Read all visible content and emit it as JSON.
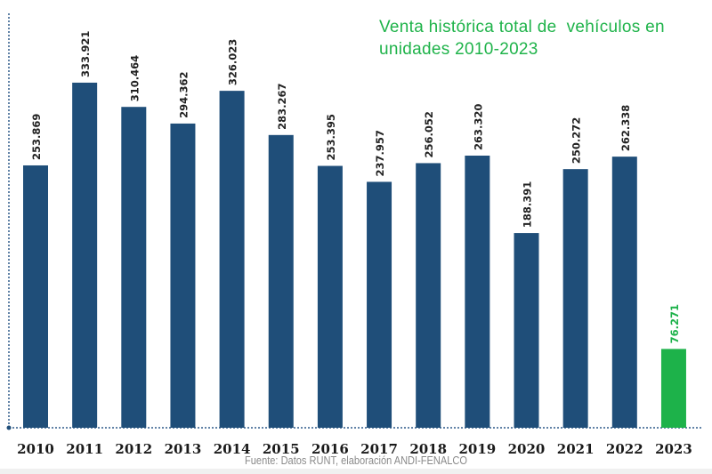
{
  "chart_data": {
    "type": "bar",
    "title": "Venta histórica total de  vehículos en\nunidades 2010-2023",
    "categories": [
      "2010",
      "2011",
      "2012",
      "2013",
      "2014",
      "2015",
      "2016",
      "2017",
      "2018",
      "2019",
      "2020",
      "2021",
      "2022",
      "2023"
    ],
    "values": [
      253869,
      333921,
      310464,
      294362,
      326023,
      283267,
      253395,
      237957,
      256052,
      263320,
      188391,
      250272,
      262338,
      76271
    ],
    "value_labels": [
      "253.869",
      "333.921",
      "310.464",
      "294.362",
      "326.023",
      "283.267",
      "253.395",
      "237.957",
      "256.052",
      "263.320",
      "188.391",
      "250.272",
      "262.338",
      "76.271"
    ],
    "colors": [
      "#1f4e79",
      "#1f4e79",
      "#1f4e79",
      "#1f4e79",
      "#1f4e79",
      "#1f4e79",
      "#1f4e79",
      "#1f4e79",
      "#1f4e79",
      "#1f4e79",
      "#1f4e79",
      "#1f4e79",
      "#1f4e79",
      "#1db24a"
    ],
    "label_colors": [
      "#222222",
      "#222222",
      "#222222",
      "#222222",
      "#222222",
      "#222222",
      "#222222",
      "#222222",
      "#222222",
      "#222222",
      "#222222",
      "#222222",
      "#222222",
      "#1db24a"
    ],
    "xlabel": "",
    "ylabel": "",
    "ylim": [
      0,
      401000
    ],
    "grid": false,
    "source": "Fuente: Datos RUNT, elaboración ANDI-FENALCO"
  }
}
